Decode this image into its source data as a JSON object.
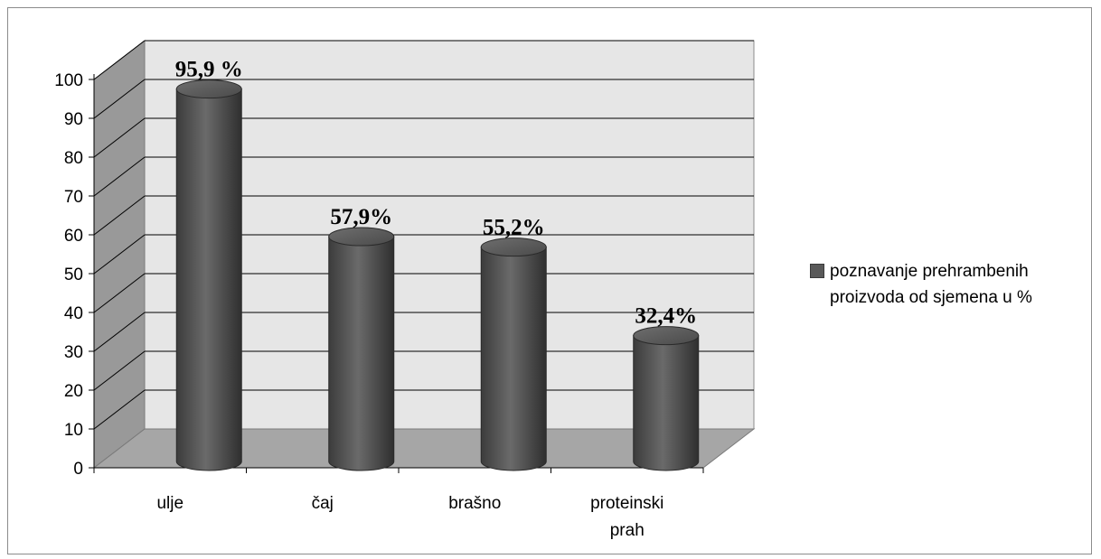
{
  "chart_data": {
    "type": "bar",
    "style": "3d-cylinder",
    "categories": [
      "ulje",
      "čaj",
      "brašno",
      "proteinski prah"
    ],
    "category_labels": [
      [
        "ulje"
      ],
      [
        "čaj"
      ],
      [
        "brašno"
      ],
      [
        "proteinski",
        "prah"
      ]
    ],
    "series": [
      {
        "name": "poznavanje prehrambenih proizvoda od sjemena u %",
        "values": [
          95.9,
          57.9,
          55.2,
          32.4
        ]
      }
    ],
    "data_labels": [
      "95,9 %",
      "57,9%",
      "55,2%",
      "32,4%"
    ],
    "y_ticks": [
      "0",
      "10",
      "20",
      "30",
      "40",
      "50",
      "60",
      "70",
      "80",
      "90",
      "100"
    ],
    "ylim": [
      0,
      100
    ],
    "grid": true,
    "legend_position": "right",
    "colors": {
      "bar": "#595959",
      "wall": "#e6e6e6",
      "side_wall": "#999999",
      "floor": "#a6a6a6",
      "grid": "#000000"
    }
  },
  "legend": {
    "line1": "poznavanje prehrambenih",
    "line2": "proizvoda od sjemena u %"
  }
}
